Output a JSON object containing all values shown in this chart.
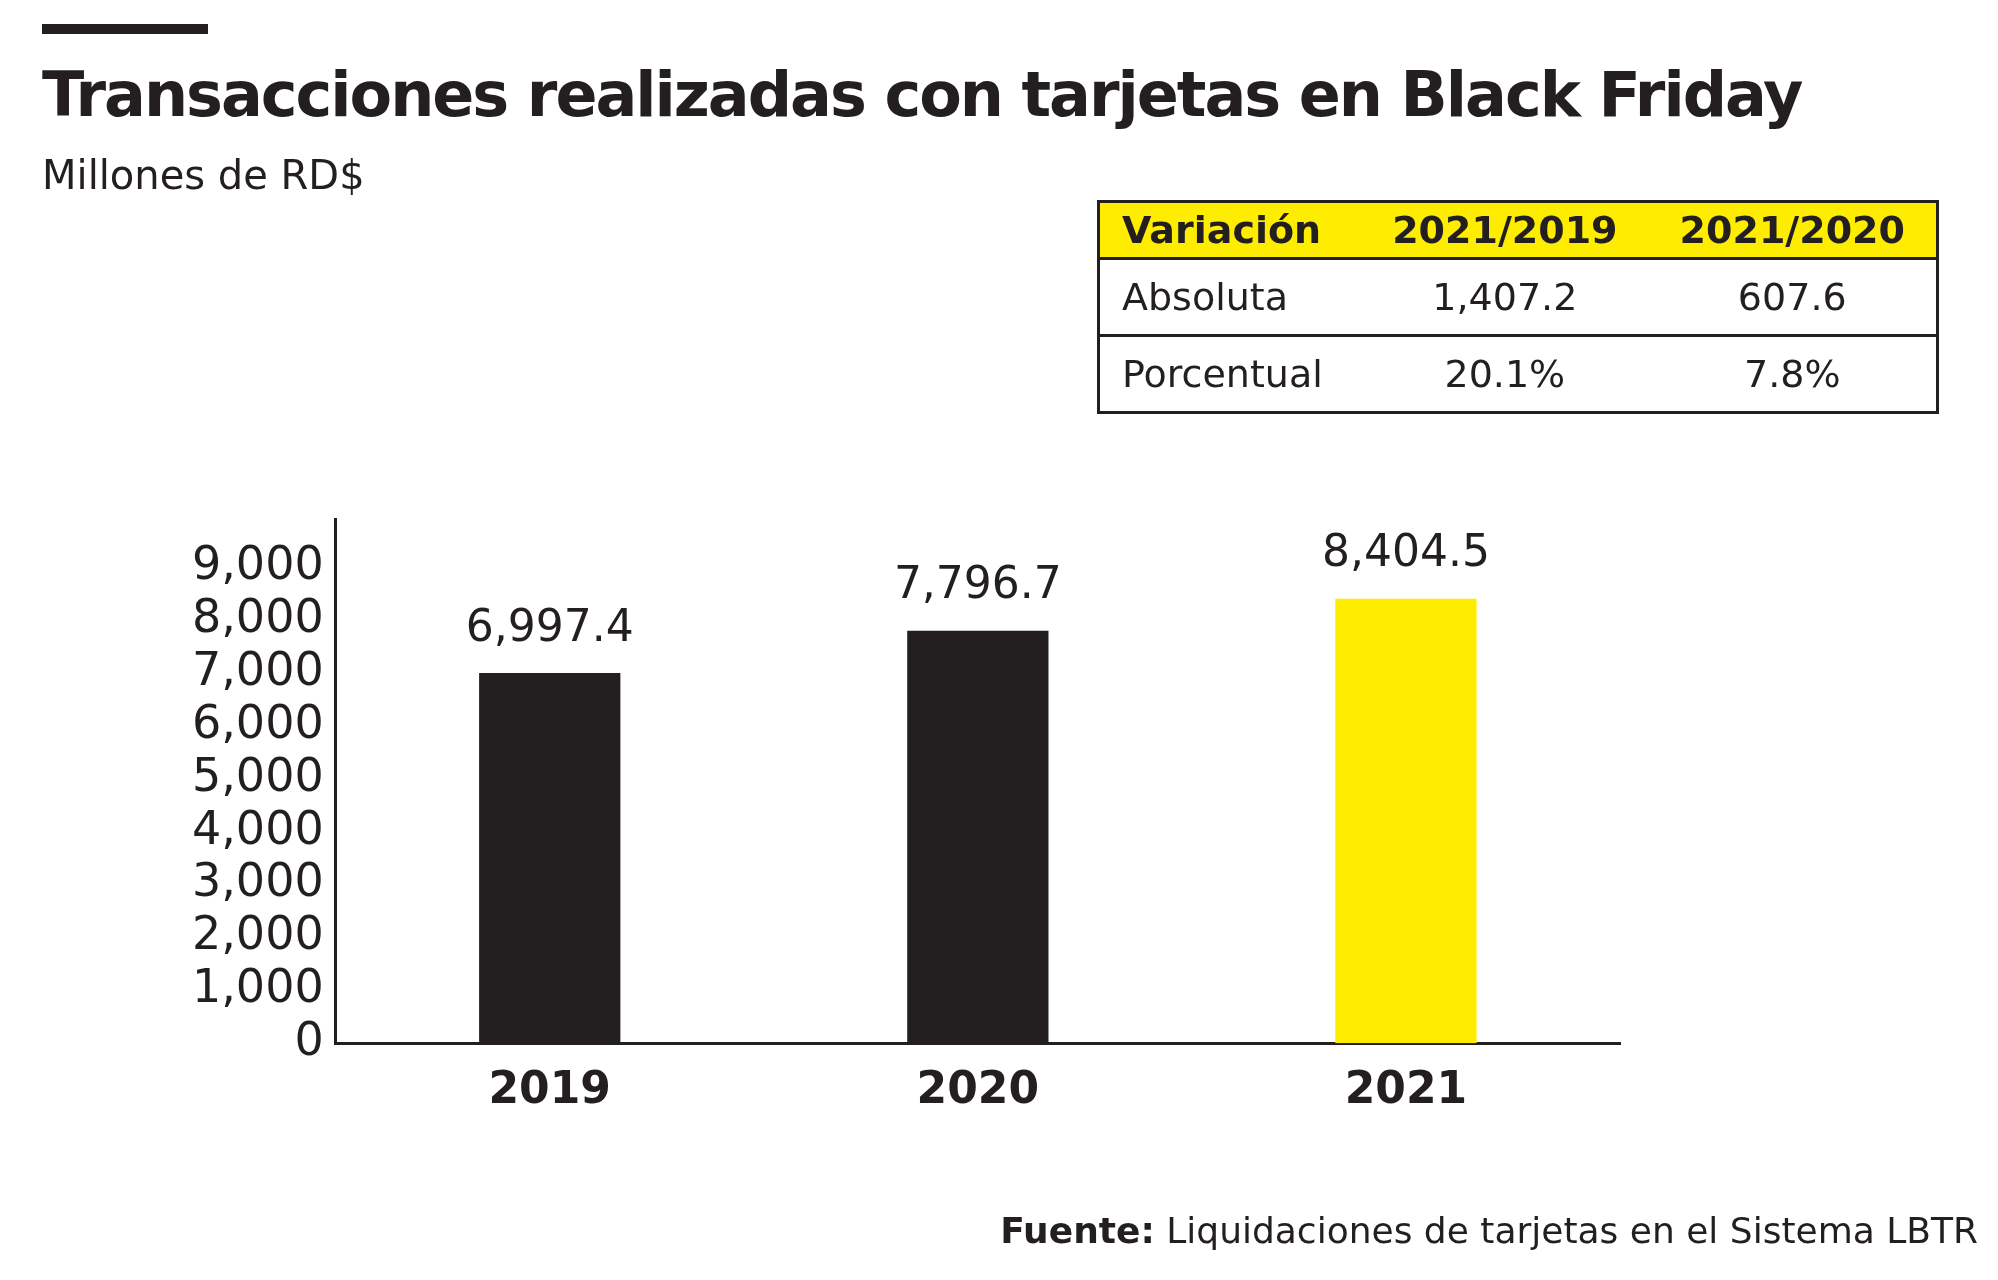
{
  "chart_data": {
    "type": "bar",
    "title": "Transacciones realizadas con tarjetas en Black Friday",
    "subtitle": "Millones de RD$",
    "categories": [
      "2019",
      "2020",
      "2021"
    ],
    "values": [
      6997.4,
      7796.7,
      8404.5
    ],
    "colors": [
      "#231f20",
      "#231f20",
      "#ffed00"
    ],
    "value_labels": [
      "6,997.4",
      "7,796.7",
      "8,404.5"
    ],
    "ylim": [
      0,
      9900
    ],
    "yticks": [
      {
        "value": 0,
        "label": "0"
      },
      {
        "value": 1000,
        "label": "1,000"
      },
      {
        "value": 2000,
        "label": "2,000"
      },
      {
        "value": 3000,
        "label": "3,000"
      },
      {
        "value": 4000,
        "label": "4,000"
      },
      {
        "value": 5000,
        "label": "5,000"
      },
      {
        "value": 6000,
        "label": "6,000"
      },
      {
        "value": 7000,
        "label": "7,000"
      },
      {
        "value": 8000,
        "label": "8,000"
      },
      {
        "value": 9000,
        "label": "9,000"
      }
    ],
    "grid": false,
    "legend": false,
    "annotations": [
      "Variación",
      "2021/2019",
      "2021/2020",
      "Absoluta",
      "1,407.2",
      "607.6",
      "Porcentual",
      "20.1%",
      "7.8%",
      "Fuente: Liquidaciones de tarjetas en el Sistema LBTR"
    ]
  }
}
